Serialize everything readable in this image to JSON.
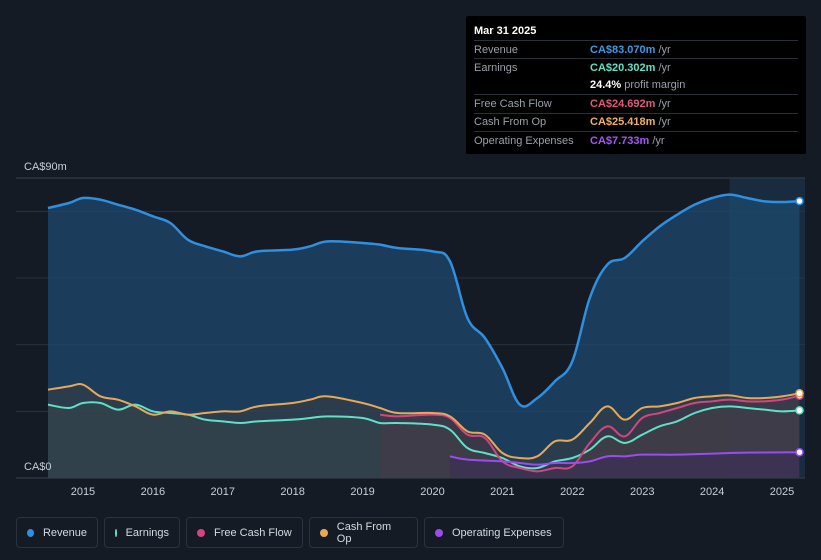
{
  "tooltip": {
    "date": "Mar 31 2025",
    "rows": [
      {
        "label": "Revenue",
        "value": "CA$83.070m",
        "unit": "/yr",
        "color": "#3a9be3"
      },
      {
        "label": "Earnings",
        "value": "CA$20.302m",
        "unit": "/yr",
        "color": "#5fe0c7"
      },
      {
        "label": "",
        "value": "24.4%",
        "unit": "profit margin",
        "color": "#ffffff"
      },
      {
        "label": "Free Cash Flow",
        "value": "CA$24.692m",
        "unit": "/yr",
        "color": "#e4577e"
      },
      {
        "label": "Cash From Op",
        "value": "CA$25.418m",
        "unit": "/yr",
        "color": "#f0b062"
      },
      {
        "label": "Operating Expenses",
        "value": "CA$7.733m",
        "unit": "/yr",
        "color": "#a855f7"
      }
    ]
  },
  "legend": [
    {
      "label": "Revenue",
      "color": "#2f8fe0"
    },
    {
      "label": "Earnings",
      "color": "#5fe0c7"
    },
    {
      "label": "Free Cash Flow",
      "color": "#d2467d"
    },
    {
      "label": "Cash From Op",
      "color": "#e8a858"
    },
    {
      "label": "Operating Expenses",
      "color": "#9b4cf0"
    }
  ],
  "chart_data": {
    "type": "area",
    "title": "",
    "ylabel_top": "CA$90m",
    "ylabel_bottom": "CA$0",
    "ylim": [
      0,
      90
    ],
    "xlim": [
      2014.5,
      2025.3
    ],
    "x_ticks": [
      "2015",
      "2016",
      "2017",
      "2018",
      "2019",
      "2020",
      "2021",
      "2022",
      "2023",
      "2024",
      "2025"
    ],
    "x_tick_values": [
      2015,
      2016,
      2017,
      2018,
      2019,
      2020,
      2021,
      2022,
      2023,
      2024,
      2025
    ],
    "past_data_start": 2019.25,
    "forecast_shade_start": 2024.25,
    "series": [
      {
        "name": "Revenue",
        "color": "#2f8fe0",
        "points": [
          [
            2014.5,
            81
          ],
          [
            2014.8,
            82.5
          ],
          [
            2015.0,
            84
          ],
          [
            2015.25,
            83.5
          ],
          [
            2015.5,
            82
          ],
          [
            2015.75,
            80.5
          ],
          [
            2016.0,
            78.5
          ],
          [
            2016.25,
            76.5
          ],
          [
            2016.5,
            71.5
          ],
          [
            2016.75,
            69.5
          ],
          [
            2017.0,
            68
          ],
          [
            2017.25,
            66.5
          ],
          [
            2017.5,
            68
          ],
          [
            2018.0,
            68.5
          ],
          [
            2018.25,
            69.5
          ],
          [
            2018.5,
            71
          ],
          [
            2019.0,
            70.5
          ],
          [
            2019.25,
            70
          ],
          [
            2019.5,
            69
          ],
          [
            2020.0,
            68
          ],
          [
            2020.25,
            65
          ],
          [
            2020.5,
            48
          ],
          [
            2020.75,
            42
          ],
          [
            2021.0,
            33
          ],
          [
            2021.25,
            22
          ],
          [
            2021.5,
            24
          ],
          [
            2021.75,
            29
          ],
          [
            2022.0,
            35
          ],
          [
            2022.25,
            54
          ],
          [
            2022.5,
            64
          ],
          [
            2022.75,
            66
          ],
          [
            2023.0,
            71
          ],
          [
            2023.25,
            75.5
          ],
          [
            2023.5,
            79
          ],
          [
            2023.75,
            82
          ],
          [
            2024.0,
            84
          ],
          [
            2024.25,
            85
          ],
          [
            2024.5,
            84
          ],
          [
            2024.75,
            83
          ],
          [
            2025.0,
            82.8
          ],
          [
            2025.25,
            83.07
          ]
        ]
      },
      {
        "name": "Earnings",
        "color": "#5fe0c7",
        "points": [
          [
            2014.5,
            22
          ],
          [
            2014.8,
            21
          ],
          [
            2015.0,
            22.5
          ],
          [
            2015.25,
            22.5
          ],
          [
            2015.5,
            20.5
          ],
          [
            2015.75,
            22
          ],
          [
            2016.0,
            20
          ],
          [
            2016.25,
            19.5
          ],
          [
            2016.5,
            19
          ],
          [
            2016.75,
            17.5
          ],
          [
            2017.0,
            17
          ],
          [
            2017.25,
            16.5
          ],
          [
            2017.5,
            17
          ],
          [
            2018.0,
            17.5
          ],
          [
            2018.25,
            18
          ],
          [
            2018.5,
            18.5
          ],
          [
            2019.0,
            18
          ],
          [
            2019.25,
            16.5
          ],
          [
            2019.5,
            16.5
          ],
          [
            2020.0,
            16
          ],
          [
            2020.25,
            14.5
          ],
          [
            2020.5,
            9
          ],
          [
            2020.75,
            7.5
          ],
          [
            2021.0,
            6
          ],
          [
            2021.25,
            3.5
          ],
          [
            2021.5,
            3
          ],
          [
            2021.75,
            5
          ],
          [
            2022.0,
            6
          ],
          [
            2022.25,
            8.5
          ],
          [
            2022.5,
            12.5
          ],
          [
            2022.75,
            10.5
          ],
          [
            2023.0,
            13
          ],
          [
            2023.25,
            15.5
          ],
          [
            2023.5,
            17
          ],
          [
            2023.75,
            19.5
          ],
          [
            2024.0,
            21
          ],
          [
            2024.25,
            21.5
          ],
          [
            2024.5,
            21
          ],
          [
            2024.75,
            20.5
          ],
          [
            2025.0,
            20
          ],
          [
            2025.25,
            20.302
          ]
        ]
      },
      {
        "name": "Free Cash Flow",
        "color": "#d2467d",
        "points": [
          [
            2019.25,
            19
          ],
          [
            2019.5,
            18.5
          ],
          [
            2020.0,
            19
          ],
          [
            2020.25,
            18
          ],
          [
            2020.5,
            13
          ],
          [
            2020.75,
            12
          ],
          [
            2021.0,
            5
          ],
          [
            2021.25,
            3
          ],
          [
            2021.5,
            2
          ],
          [
            2021.75,
            3
          ],
          [
            2022.0,
            3.5
          ],
          [
            2022.25,
            10.5
          ],
          [
            2022.5,
            15.5
          ],
          [
            2022.75,
            12.5
          ],
          [
            2023.0,
            18
          ],
          [
            2023.25,
            19.5
          ],
          [
            2023.5,
            21
          ],
          [
            2023.75,
            22.5
          ],
          [
            2024.0,
            23
          ],
          [
            2024.25,
            23.5
          ],
          [
            2024.5,
            23
          ],
          [
            2024.75,
            23
          ],
          [
            2025.0,
            23.5
          ],
          [
            2025.25,
            24.692
          ]
        ]
      },
      {
        "name": "Cash From Op",
        "color": "#e8a858",
        "points": [
          [
            2014.5,
            26.5
          ],
          [
            2014.8,
            27.5
          ],
          [
            2015.0,
            28
          ],
          [
            2015.25,
            24.5
          ],
          [
            2015.5,
            23.5
          ],
          [
            2015.75,
            21.5
          ],
          [
            2016.0,
            19
          ],
          [
            2016.25,
            20
          ],
          [
            2016.5,
            19
          ],
          [
            2016.75,
            19.5
          ],
          [
            2017.0,
            20
          ],
          [
            2017.25,
            20
          ],
          [
            2017.5,
            21.5
          ],
          [
            2018.0,
            22.5
          ],
          [
            2018.25,
            23.5
          ],
          [
            2018.5,
            24.5
          ],
          [
            2019.0,
            22.5
          ],
          [
            2019.25,
            21
          ],
          [
            2019.5,
            19.5
          ],
          [
            2020.0,
            19.5
          ],
          [
            2020.25,
            18.5
          ],
          [
            2020.5,
            14
          ],
          [
            2020.75,
            13
          ],
          [
            2021.0,
            7.5
          ],
          [
            2021.25,
            6
          ],
          [
            2021.5,
            6.5
          ],
          [
            2021.75,
            11
          ],
          [
            2022.0,
            11.5
          ],
          [
            2022.25,
            16.5
          ],
          [
            2022.5,
            21.5
          ],
          [
            2022.75,
            17.5
          ],
          [
            2023.0,
            21
          ],
          [
            2023.25,
            21.5
          ],
          [
            2023.5,
            22.5
          ],
          [
            2023.75,
            24
          ],
          [
            2024.0,
            24.5
          ],
          [
            2024.25,
            24.8
          ],
          [
            2024.5,
            24
          ],
          [
            2024.75,
            24
          ],
          [
            2025.0,
            24.5
          ],
          [
            2025.25,
            25.418
          ]
        ]
      },
      {
        "name": "Operating Expenses",
        "color": "#9b4cf0",
        "points": [
          [
            2020.25,
            6.5
          ],
          [
            2020.5,
            5.5
          ],
          [
            2021.0,
            5
          ],
          [
            2021.25,
            4.5
          ],
          [
            2021.5,
            4
          ],
          [
            2021.75,
            4.5
          ],
          [
            2022.0,
            4.5
          ],
          [
            2022.25,
            5
          ],
          [
            2022.5,
            6.5
          ],
          [
            2022.75,
            6.5
          ],
          [
            2023.0,
            7
          ],
          [
            2023.5,
            7
          ],
          [
            2024.0,
            7.3
          ],
          [
            2024.25,
            7.5
          ],
          [
            2024.5,
            7.6
          ],
          [
            2025.0,
            7.7
          ],
          [
            2025.25,
            7.733
          ]
        ]
      }
    ]
  }
}
